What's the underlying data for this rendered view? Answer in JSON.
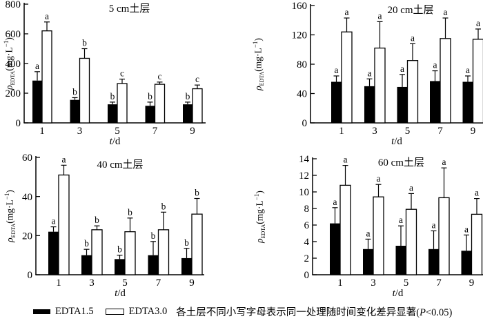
{
  "figure": {
    "background": "#ffffff",
    "text_color": "#000000",
    "axis_color": "#000000",
    "ylabel": {
      "rho": "ρ",
      "sub": "EDTA",
      "unit_pre": "(mg·L",
      "sup": "−1",
      "unit_post": ")"
    },
    "xlabel": {
      "var": "t",
      "rest": "/d"
    }
  },
  "legend": {
    "items": [
      {
        "label": "EDTA1.5",
        "fill": "#000000"
      },
      {
        "label": "EDTA3.0",
        "fill": "#ffffff"
      }
    ],
    "note_pre": "各土层不同小写字母表示同一处理随时间变化差异显著(",
    "note_var": "P",
    "note_post": "<0.05)"
  },
  "chart_data": [
    {
      "type": "bar",
      "title": "5 cm土层",
      "categories": [
        "1",
        "3",
        "5",
        "7",
        "9"
      ],
      "xlabel": "t/d",
      "ylabel": "ρEDTA(mg·L⁻¹)",
      "ylim": [
        0,
        800
      ],
      "yticks": [
        0,
        200,
        400,
        600,
        800
      ],
      "grid": false,
      "series": [
        {
          "name": "EDTA1.5",
          "fill": "#000000",
          "values": [
            285,
            155,
            125,
            115,
            125
          ],
          "errors": [
            60,
            15,
            15,
            25,
            15
          ],
          "sig_letters": [
            "a",
            "b",
            "b",
            "b",
            "b"
          ]
        },
        {
          "name": "EDTA3.0",
          "fill": "#ffffff",
          "values": [
            620,
            435,
            265,
            260,
            230
          ],
          "errors": [
            60,
            65,
            30,
            15,
            25
          ],
          "sig_letters": [
            "a",
            "b",
            "c",
            "c",
            "c"
          ]
        }
      ]
    },
    {
      "type": "bar",
      "title": "20 cm土层",
      "categories": [
        "1",
        "3",
        "5",
        "7",
        "9"
      ],
      "xlabel": "t/d",
      "ylabel": "ρEDTA(mg·L⁻¹)",
      "ylim": [
        0,
        160
      ],
      "yticks": [
        0,
        40,
        80,
        120,
        160
      ],
      "grid": false,
      "series": [
        {
          "name": "EDTA1.5",
          "fill": "#000000",
          "values": [
            56,
            50,
            49,
            57,
            56
          ],
          "errors": [
            8,
            10,
            17,
            14,
            8
          ],
          "sig_letters": [
            "a",
            "a",
            "a",
            "a",
            "a"
          ]
        },
        {
          "name": "EDTA3.0",
          "fill": "#ffffff",
          "values": [
            124,
            102,
            85,
            115,
            114
          ],
          "errors": [
            19,
            36,
            23,
            28,
            14
          ],
          "sig_letters": [
            "a",
            "a",
            "a",
            "a",
            "a"
          ]
        }
      ]
    },
    {
      "type": "bar",
      "title": "40 cm土层",
      "categories": [
        "1",
        "3",
        "5",
        "7",
        "9"
      ],
      "xlabel": "t/d",
      "ylabel": "ρEDTA(mg·L⁻¹)",
      "ylim": [
        0,
        60
      ],
      "yticks": [
        0,
        20,
        40,
        60
      ],
      "grid": false,
      "series": [
        {
          "name": "EDTA1.5",
          "fill": "#000000",
          "values": [
            22,
            10,
            8,
            10,
            8.5
          ],
          "errors": [
            2.5,
            3,
            2,
            7,
            5
          ],
          "sig_letters": [
            "a",
            "b",
            "b",
            "b",
            "b"
          ]
        },
        {
          "name": "EDTA3.0",
          "fill": "#ffffff",
          "values": [
            51,
            23,
            22,
            23,
            31
          ],
          "errors": [
            5,
            2,
            7,
            9,
            8
          ],
          "sig_letters": [
            "a",
            "b",
            "b",
            "b",
            "b"
          ]
        }
      ]
    },
    {
      "type": "bar",
      "title": "60 cm土层",
      "categories": [
        "1",
        "3",
        "5",
        "7",
        "9"
      ],
      "xlabel": "t/d",
      "ylabel": "ρEDTA(mg·L⁻¹)",
      "ylim": [
        0,
        14
      ],
      "yticks": [
        0,
        2,
        4,
        6,
        8,
        10,
        12,
        14
      ],
      "grid": false,
      "series": [
        {
          "name": "EDTA1.5",
          "fill": "#000000",
          "values": [
            6.2,
            3.1,
            3.5,
            3.1,
            2.9
          ],
          "errors": [
            1.9,
            1.2,
            2.4,
            2.2,
            1.9
          ],
          "sig_letters": [
            "a",
            "a",
            "a",
            "a",
            "a"
          ]
        },
        {
          "name": "EDTA3.0",
          "fill": "#ffffff",
          "values": [
            10.8,
            9.4,
            7.9,
            9.3,
            7.3
          ],
          "errors": [
            2.4,
            1.5,
            1.9,
            3.6,
            1.9
          ],
          "sig_letters": [
            "a",
            "a",
            "a",
            "a",
            "a"
          ]
        }
      ]
    }
  ]
}
